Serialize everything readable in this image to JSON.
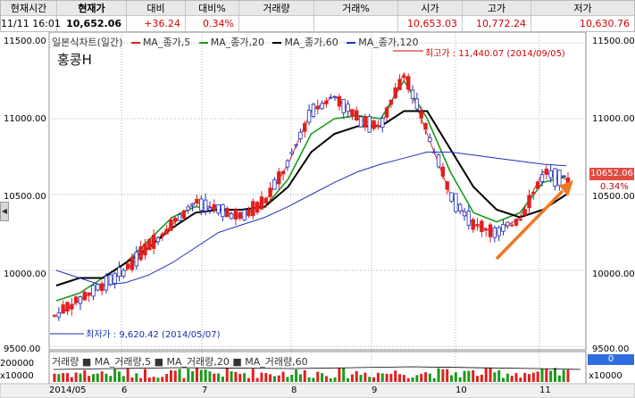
{
  "info": {
    "headers": [
      "현재시간",
      "현재가",
      "대비",
      "대비%",
      "거래량",
      "거래%",
      "시가",
      "고가",
      "저가"
    ],
    "values": [
      "11/11   16:01",
      "10,652.06",
      "+36.24",
      "0.34%",
      "",
      "",
      "10,653.03",
      "10,772.24",
      "10,630.76"
    ],
    "colors": {
      "up": "#d40000",
      "neutral": "#000000"
    }
  },
  "chart": {
    "legend_prefix": "일본식차트(일간)",
    "ma": [
      {
        "label": "MA_종가,5",
        "color": "#e02020"
      },
      {
        "label": "MA_종가,20",
        "color": "#1a9a1a"
      },
      {
        "label": "MA_종가,60",
        "color": "#000000"
      },
      {
        "label": "MA_종가,120",
        "color": "#2030c0"
      }
    ],
    "title": "홍콩H",
    "high_label": "최고가 : 11,440.07 (2014/09/05)",
    "low_label": "최저가 : 9,620.42 (2014/05/07)",
    "price_tag": "10652.06",
    "pct_tag": "0.34%",
    "y_ticks": [
      "11500.00",
      "11000.00",
      "10500.00",
      "10000.00",
      "9500.00"
    ],
    "x_ticks": [
      "2014/05",
      "6",
      "7",
      "8",
      "9",
      "10",
      "11"
    ],
    "colors": {
      "up": "#e02020",
      "down": "#1c2fb8",
      "arrow": "#f07820",
      "grid": "#b0b0b0"
    }
  },
  "chart_data": {
    "type": "line",
    "title": "홍콩H",
    "ylim": [
      9500,
      11500
    ],
    "series": [
      {
        "name": "MA_종가,5",
        "values": [
          9700,
          9800,
          9900,
          10000,
          10150,
          10300,
          10450,
          10400,
          10350,
          10450,
          10700,
          11050,
          11150,
          11000,
          10950,
          11300,
          10900,
          10500,
          10300,
          10250,
          10350,
          10650,
          10600
        ]
      },
      {
        "name": "MA_종가,20",
        "values": [
          9800,
          9850,
          9950,
          10050,
          10200,
          10350,
          10420,
          10400,
          10400,
          10420,
          10600,
          10900,
          11000,
          11020,
          11000,
          11250,
          11000,
          10650,
          10380,
          10320,
          10380,
          10580,
          10620
        ]
      },
      {
        "name": "MA_종가,60",
        "values": [
          9900,
          9950,
          9950,
          10050,
          10150,
          10280,
          10380,
          10400,
          10400,
          10420,
          10550,
          10780,
          10900,
          10950,
          10950,
          11050,
          11050,
          10800,
          10550,
          10400,
          10350,
          10400,
          10500
        ]
      },
      {
        "name": "MA_종가,120",
        "values": [
          10000,
          9950,
          9900,
          9920,
          9970,
          10050,
          10150,
          10250,
          10300,
          10350,
          10420,
          10500,
          10580,
          10650,
          10700,
          10740,
          10780,
          10780,
          10760,
          10740,
          10720,
          10700,
          10690
        ]
      }
    ],
    "volume_legend": "거래량 ■ MA_거래량,5 ■ MA_거래량,20 ■ MA_거래량,60",
    "volume_ytop": "200000",
    "volume_unit": "x10000",
    "volume_tag": "0"
  }
}
